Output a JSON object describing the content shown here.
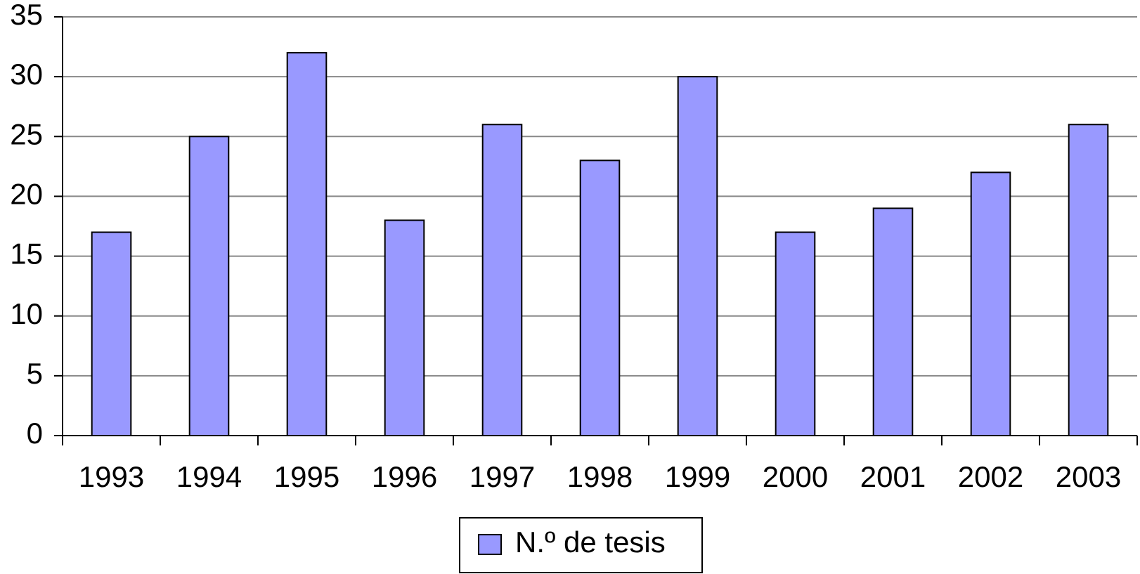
{
  "chart_data": {
    "type": "bar",
    "categories": [
      "1993",
      "1994",
      "1995",
      "1996",
      "1997",
      "1998",
      "1999",
      "2000",
      "2001",
      "2002",
      "2003"
    ],
    "series": [
      {
        "name": "N.º de tesis",
        "color": "#9999ff",
        "values": [
          17,
          25,
          32,
          18,
          26,
          23,
          30,
          17,
          19,
          22,
          26
        ]
      }
    ],
    "ylim": [
      0,
      35
    ],
    "yticks": [
      0,
      5,
      10,
      15,
      20,
      25,
      30,
      35
    ],
    "grid": true,
    "legend": "bottom"
  }
}
